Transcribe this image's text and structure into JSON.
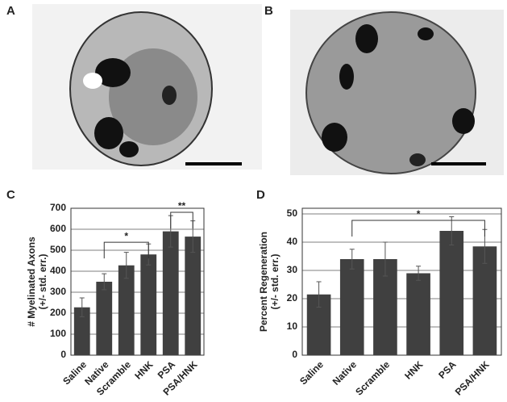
{
  "panels": {
    "a": "A",
    "b": "B"
  },
  "chart_data": [
    {
      "type": "bar",
      "panel": "C",
      "ylabel": [
        "# Myelinated Axons",
        "(+/- std. err.)"
      ],
      "categories": [
        "Saline",
        "Native",
        "Scramble",
        "HNK",
        "PSA",
        "PSA/HNK"
      ],
      "values": [
        228,
        350,
        428,
        480,
        590,
        565
      ],
      "errors": [
        45,
        38,
        62,
        50,
        75,
        75
      ],
      "color": "#404040",
      "ylim": [
        0,
        700
      ],
      "yticks": [
        0,
        100,
        200,
        300,
        400,
        500,
        600,
        700
      ],
      "grid": true,
      "annotations": [
        {
          "label": "*",
          "start": "Native",
          "end": "HNK",
          "y": 538
        },
        {
          "label": "**",
          "start": "PSA",
          "end": "PSA/HNK",
          "y": 681
        }
      ]
    },
    {
      "type": "bar",
      "panel": "D",
      "ylabel": [
        "Percent Regeneration",
        "(+/- std. err.)"
      ],
      "categories": [
        "Saline",
        "Native",
        "Scramble",
        "HNK",
        "PSA",
        "PSA/HNK"
      ],
      "values": [
        21.5,
        34,
        34,
        29,
        44,
        38.5
      ],
      "errors": [
        4.5,
        3.5,
        6,
        2.5,
        5,
        6
      ],
      "color": "#404040",
      "ylim": [
        0,
        52
      ],
      "yticks": [
        0,
        10,
        20,
        30,
        40,
        50
      ],
      "grid": true,
      "annotations": [
        {
          "label": "*",
          "start": "Native",
          "end": "PSA/HNK",
          "y": 47.7
        }
      ]
    }
  ]
}
